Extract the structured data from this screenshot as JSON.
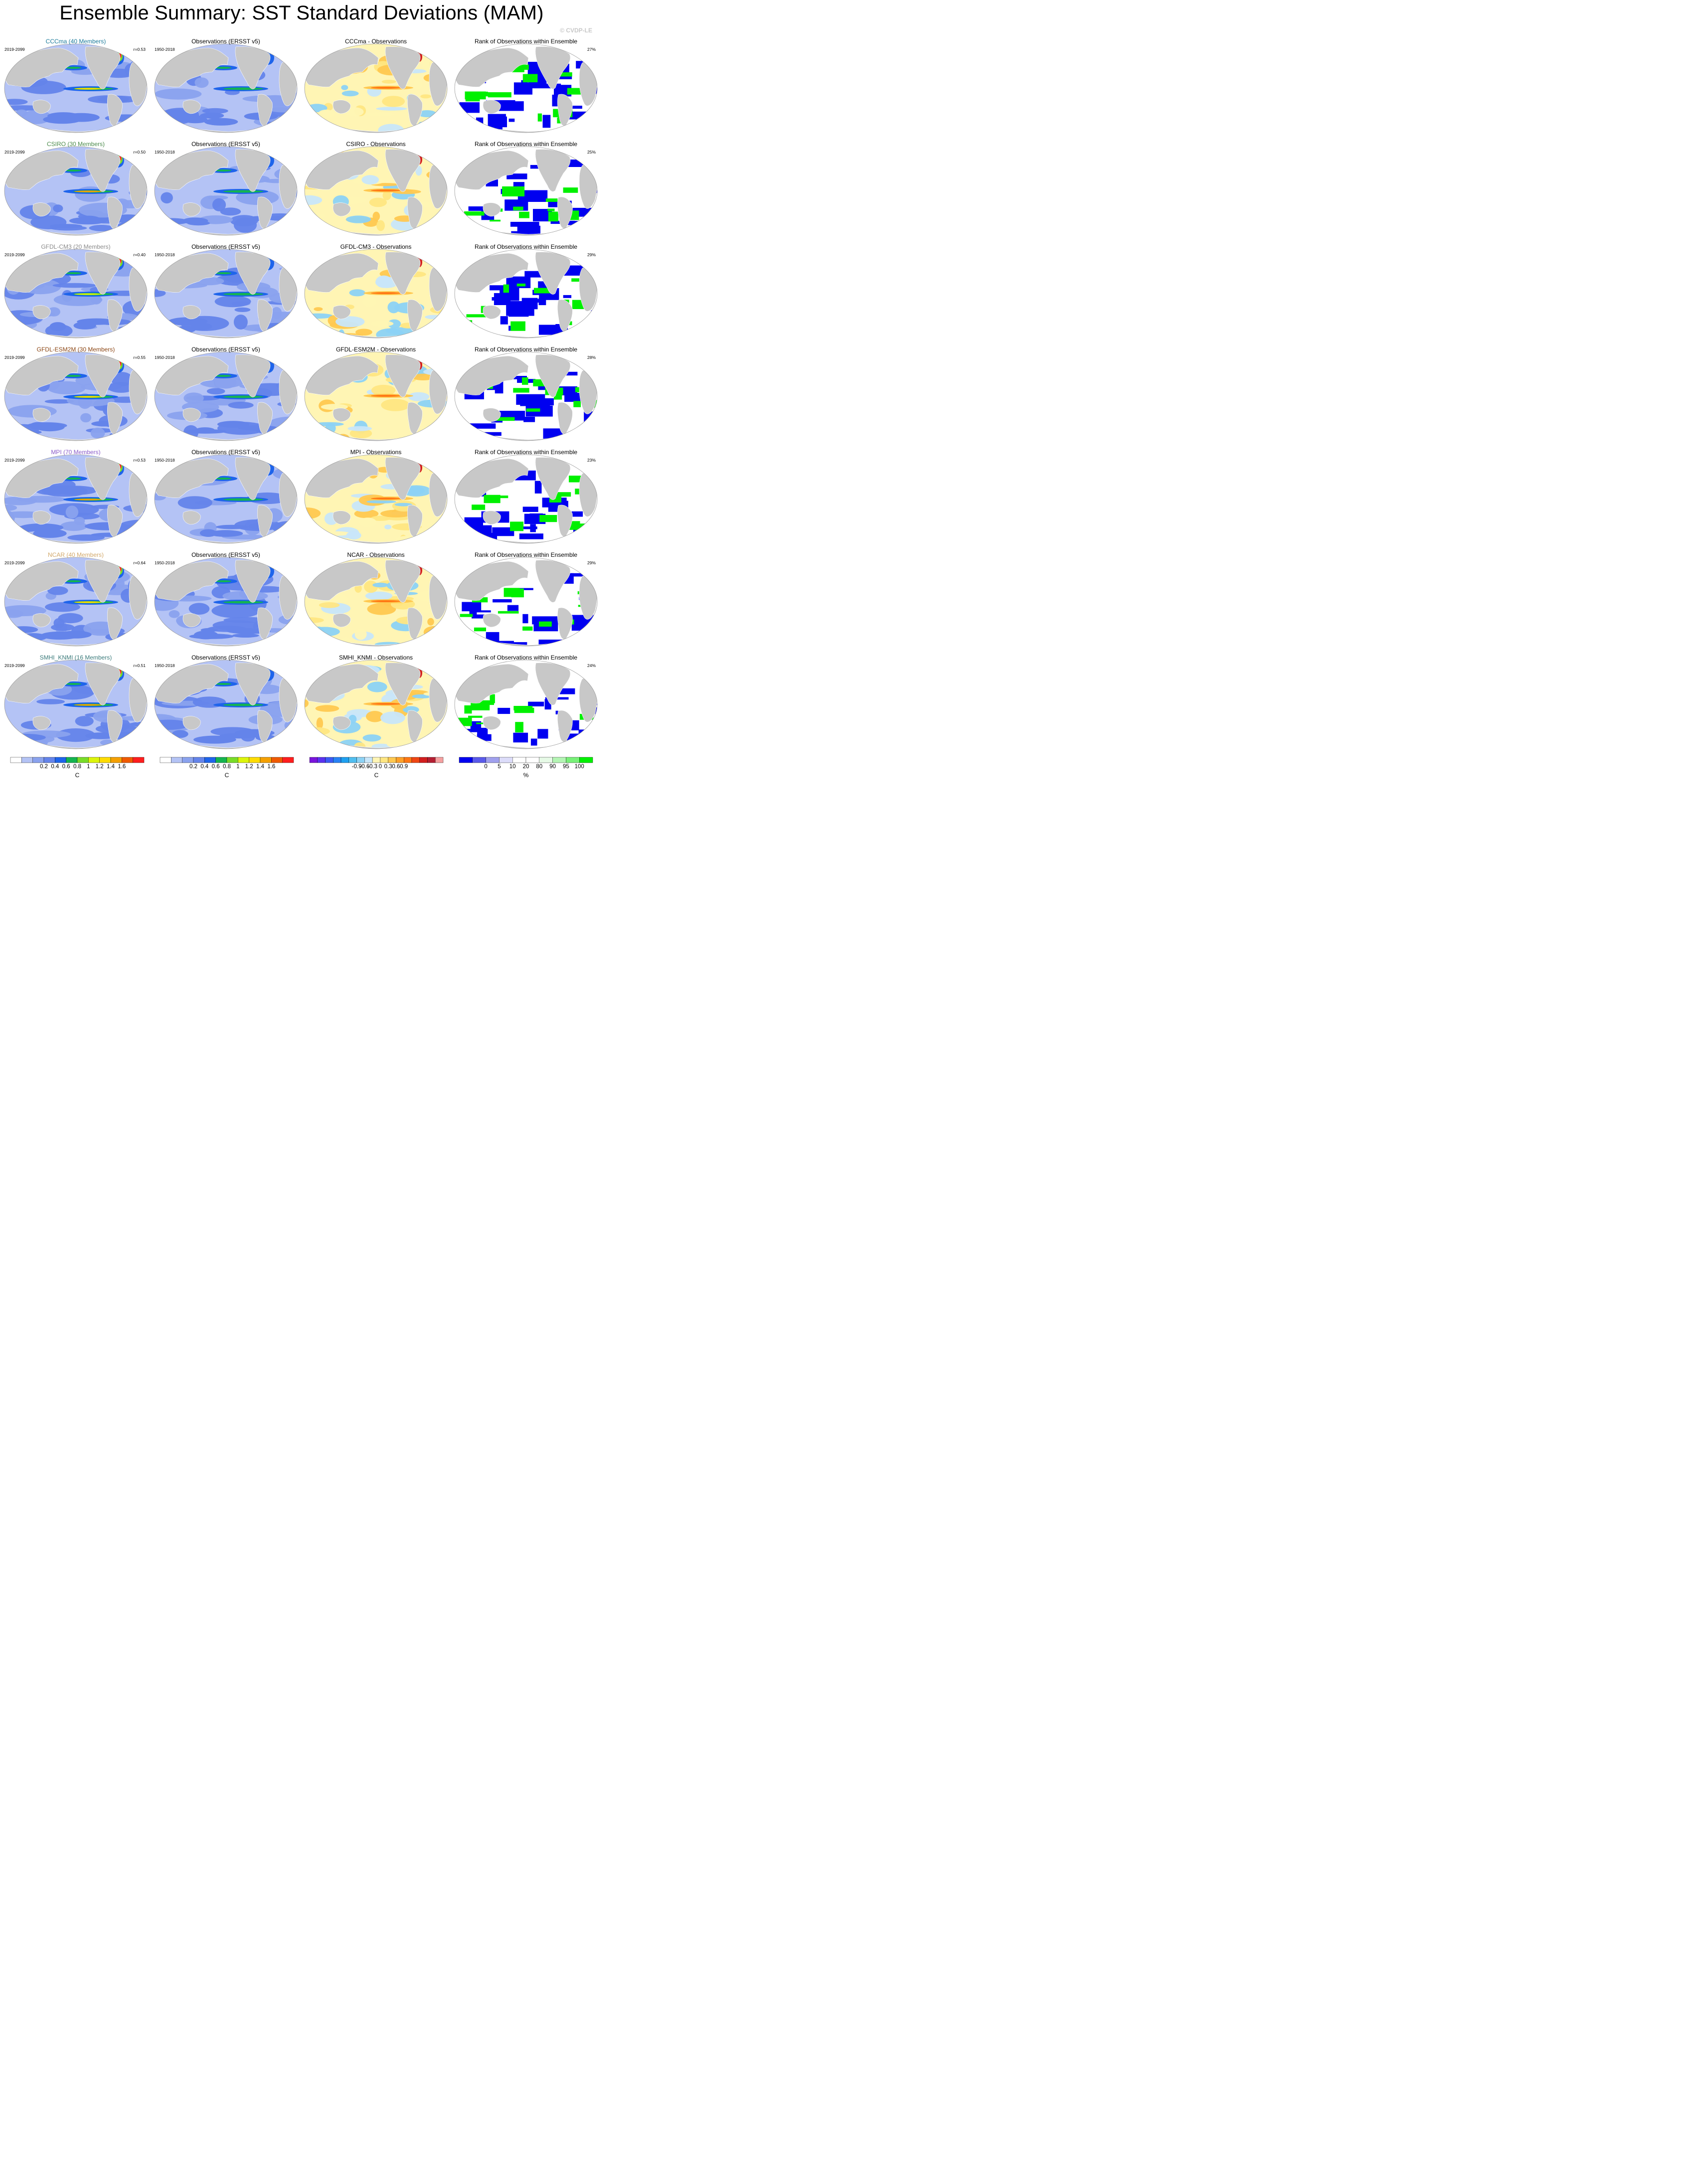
{
  "title": "Ensemble Summary: SST Standard Deviations (MAM)",
  "copyright": "© CVDP-LE",
  "rows": [
    {
      "model": "CCCma (40 Members)",
      "model_color": "#1a7a9a",
      "years": "2019-2099",
      "r": "r=0.53",
      "obs_title": "Observations (ERSST v5)",
      "obs_years": "1950-2018",
      "diff_title": "CCCma - Observations",
      "rank_title": "Rank of Observations within Ensemble",
      "rank_pct": "27%"
    },
    {
      "model": "CSIRO (30 Members)",
      "model_color": "#4a8a4a",
      "years": "2019-2099",
      "r": "r=0.50",
      "obs_title": "Observations (ERSST v5)",
      "obs_years": "1950-2018",
      "diff_title": "CSIRO - Observations",
      "rank_title": "Rank of Observations within Ensemble",
      "rank_pct": "25%"
    },
    {
      "model": "GFDL-CM3 (20 Members)",
      "model_color": "#8a8a8a",
      "years": "2019-2099",
      "r": "r=0.40",
      "obs_title": "Observations (ERSST v5)",
      "obs_years": "1950-2018",
      "diff_title": "GFDL-CM3 - Observations",
      "rank_title": "Rank of Observations within Ensemble",
      "rank_pct": "29%"
    },
    {
      "model": "GFDL-ESM2M (30 Members)",
      "model_color": "#8b4513",
      "years": "2019-2099",
      "r": "r=0.55",
      "obs_title": "Observations (ERSST v5)",
      "obs_years": "1950-2018",
      "diff_title": "GFDL-ESM2M - Observations",
      "rank_title": "Rank of Observations within Ensemble",
      "rank_pct": "28%"
    },
    {
      "model": "MPI (70 Members)",
      "model_color": "#8a5ac8",
      "years": "2019-2099",
      "r": "r=0.53",
      "obs_title": "Observations (ERSST v5)",
      "obs_years": "1950-2018",
      "diff_title": "MPI - Observations",
      "rank_title": "Rank of Observations within Ensemble",
      "rank_pct": "23%"
    },
    {
      "model": "NCAR (40 Members)",
      "model_color": "#d2a86a",
      "years": "2019-2099",
      "r": "r=0.64",
      "obs_title": "Observations (ERSST v5)",
      "obs_years": "1950-2018",
      "diff_title": "NCAR - Observations",
      "rank_title": "Rank of Observations within Ensemble",
      "rank_pct": "29%"
    },
    {
      "model": "SMHI_KNMI (16 Members)",
      "model_color": "#3a7a7a",
      "years": "2019-2099",
      "r": "r=0.51",
      "obs_title": "Observations (ERSST v5)",
      "obs_years": "1950-2018",
      "diff_title": "SMHI_KNMI - Observations",
      "rank_title": "Rank of Observations within Ensemble",
      "rank_pct": "24%"
    }
  ],
  "colorbars": [
    {
      "unit": "C",
      "labels": [
        "0.2",
        "0.4",
        "0.6",
        "0.8",
        "1",
        "1.2",
        "1.4",
        "1.6"
      ],
      "colors": [
        "#ffffff",
        "#b4c3f5",
        "#8aa2ee",
        "#6484ea",
        "#1e64eb",
        "#14b450",
        "#78dc28",
        "#dcf50a",
        "#ffdc00",
        "#f5a000",
        "#f05a00",
        "#ff1e1e"
      ]
    },
    {
      "unit": "C",
      "labels": [
        "0.2",
        "0.4",
        "0.6",
        "0.8",
        "1",
        "1.2",
        "1.4",
        "1.6"
      ],
      "colors": [
        "#ffffff",
        "#b4c3f5",
        "#8aa2ee",
        "#6484ea",
        "#1e64eb",
        "#14b450",
        "#78dc28",
        "#dcf50a",
        "#ffdc00",
        "#f5a000",
        "#f05a00",
        "#ff1e1e"
      ]
    },
    {
      "unit": "C",
      "labels": [
        "-0.9",
        "-0.6",
        "-0.3",
        "0",
        "0.3",
        "0.6",
        "0.9"
      ],
      "colors": [
        "#7a14dc",
        "#5a32f0",
        "#3c5af5",
        "#2882f5",
        "#1ea0f0",
        "#50bef0",
        "#8cd2f5",
        "#c8e6fa",
        "#fff5b4",
        "#ffe682",
        "#ffc850",
        "#ffa028",
        "#ff7814",
        "#f04614",
        "#d21e1e",
        "#b41e32",
        "#f5a0a0"
      ]
    },
    {
      "unit": "%",
      "labels": [
        "0",
        "5",
        "10",
        "20",
        "80",
        "90",
        "95",
        "100"
      ],
      "colors": [
        "#0000f0",
        "#5a5aea",
        "#a0a0ee",
        "#dcdcfa",
        "#ffffff",
        "#ffffff",
        "#e6fae6",
        "#b4f5b4",
        "#78f078",
        "#00f000"
      ]
    }
  ],
  "palettes": {
    "land": "#c8c8c8",
    "ocean_model": [
      "#b4c3f5",
      "#8aa2ee",
      "#6484ea",
      "#1e64eb",
      "#14b450",
      "#78dc28",
      "#dcf50a",
      "#ffdc00",
      "#f5a000",
      "#f05a00",
      "#ff1e1e"
    ],
    "diff": [
      "#c8e6fa",
      "#8cd2f5",
      "#fff5b4",
      "#ffe682",
      "#ffc850",
      "#ff7814",
      "#d21e1e"
    ],
    "rank": [
      "#0000f0",
      "#ffffff",
      "#00f000",
      "#a0a0ee"
    ]
  }
}
